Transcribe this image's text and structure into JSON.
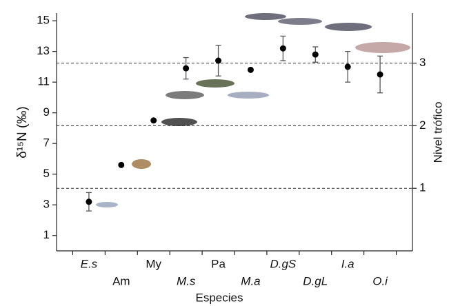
{
  "chart_data": {
    "type": "scatter",
    "ylabel": "δ¹⁵N (‰)",
    "y2label": "Nivel trófico",
    "xlabel": "Especies",
    "categories": [
      "E.s",
      "Am",
      "My",
      "M.s",
      "Pa",
      "M.a",
      "D.gS",
      "D.gL",
      "I.a",
      "O.i"
    ],
    "series": [
      {
        "color": "#000000",
        "values": [
          3.2,
          5.6,
          8.5,
          11.9,
          12.4,
          11.8,
          13.2,
          12.8,
          12.0,
          11.5
        ],
        "errors": [
          0.6,
          null,
          null,
          0.7,
          1.0,
          null,
          0.8,
          0.5,
          1.0,
          1.2
        ]
      }
    ],
    "ylim": [
      0,
      15.5
    ],
    "yticks": [
      1,
      3,
      5,
      7,
      9,
      11,
      13,
      15
    ],
    "y2lim": [
      0,
      3.8
    ],
    "y2ticks": [
      1,
      2,
      3
    ],
    "y2grid": "dashed"
  }
}
